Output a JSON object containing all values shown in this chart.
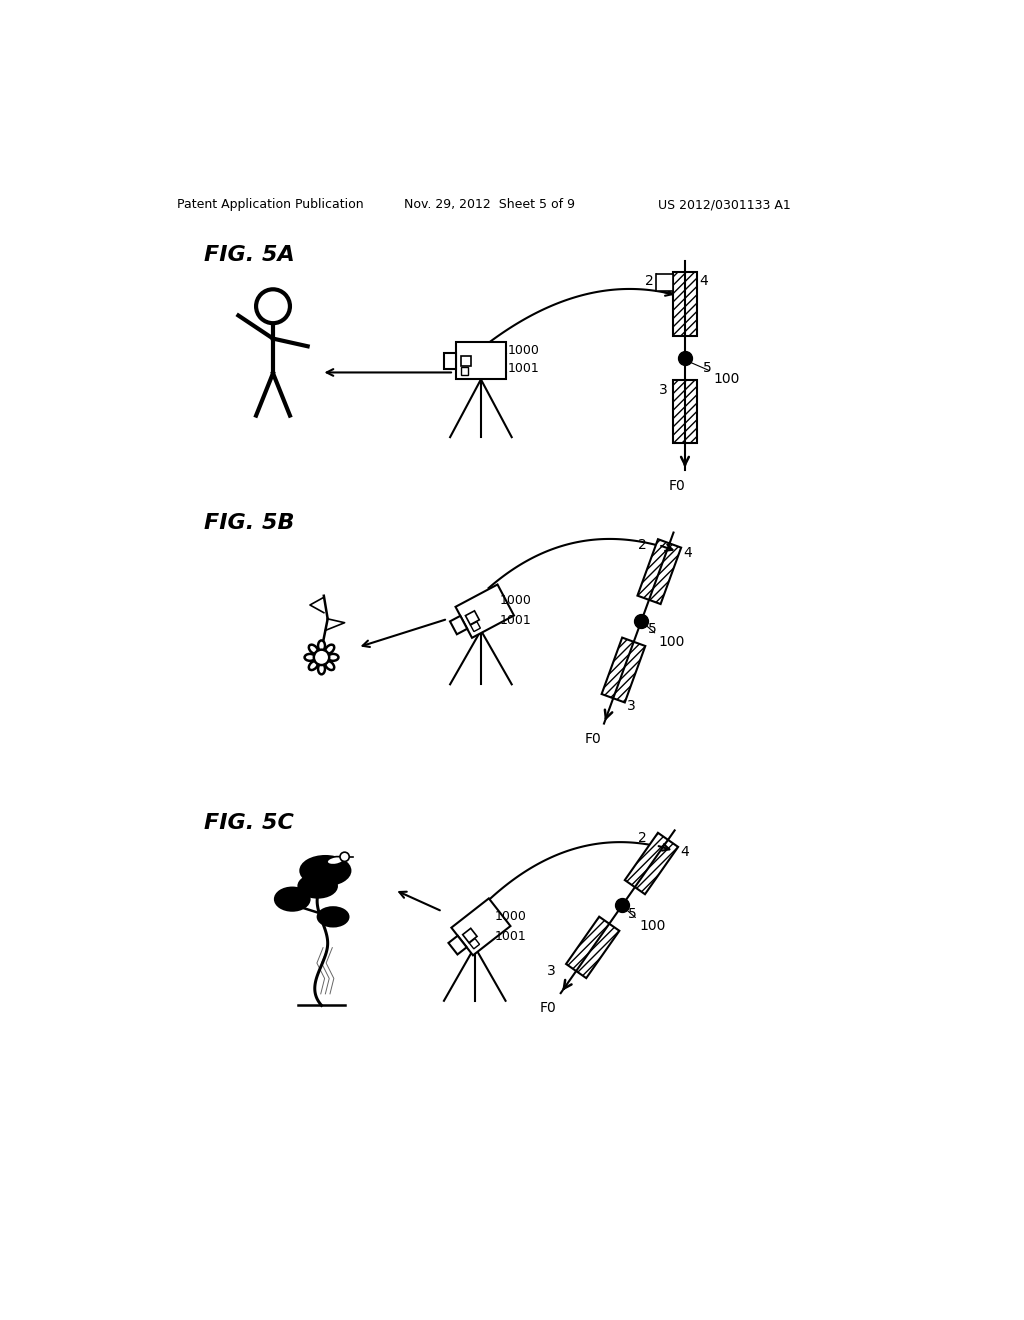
{
  "header_left": "Patent Application Publication",
  "header_mid": "Nov. 29, 2012  Sheet 5 of 9",
  "header_right": "US 2012/0301133 A1",
  "background": "#ffffff"
}
